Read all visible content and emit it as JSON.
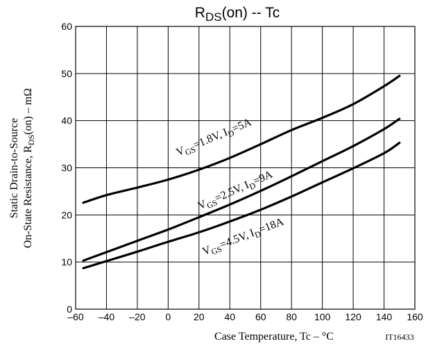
{
  "chart_data": {
    "type": "line",
    "title_main": "R",
    "title_sub": "DS",
    "title_rest": "(on)  --  Tc",
    "xlabel": "Case Temperature, Tc  –  °C",
    "ylabel_line1": "Static Drain-to-Source",
    "ylabel_line2_pre": "On-State Resistance, R",
    "ylabel_line2_sub": "DS",
    "ylabel_line2_post": "(on)  –  mΩ",
    "figure_id": "IT16433",
    "xlim": [
      -60,
      160
    ],
    "ylim": [
      0,
      60
    ],
    "x_ticks": [
      -60,
      -40,
      -20,
      0,
      20,
      40,
      60,
      80,
      100,
      120,
      140,
      160
    ],
    "x_tick_labels": [
      "–60",
      "–40",
      "–20",
      "0",
      "20",
      "40",
      "60",
      "80",
      "100",
      "120",
      "140",
      "160"
    ],
    "y_ticks": [
      0,
      10,
      20,
      30,
      40,
      50,
      60
    ],
    "y_tick_labels": [
      "0",
      "10",
      "20",
      "30",
      "40",
      "50",
      "60"
    ],
    "grid": true,
    "series": [
      {
        "label_parts": [
          "V",
          "GS",
          "=1.8V, I",
          "D",
          "=5A"
        ],
        "x": [
          -55,
          -40,
          -20,
          0,
          20,
          40,
          60,
          80,
          100,
          120,
          140,
          150
        ],
        "y": [
          22.6,
          24.2,
          25.8,
          27.5,
          29.6,
          32.1,
          35.0,
          38.0,
          40.6,
          43.5,
          47.3,
          49.5
        ]
      },
      {
        "label_parts": [
          "V",
          "GS",
          "=2.5V, I",
          "D",
          "=9A"
        ],
        "x": [
          -55,
          -40,
          -20,
          0,
          20,
          40,
          60,
          80,
          100,
          120,
          140,
          150
        ],
        "y": [
          10.3,
          12.1,
          14.5,
          16.9,
          19.5,
          22.2,
          25.1,
          28.2,
          31.4,
          34.6,
          38.2,
          40.4
        ]
      },
      {
        "label_parts": [
          "V",
          "GS",
          "=4.5V, I",
          "D",
          "=18A"
        ],
        "x": [
          -55,
          -40,
          -20,
          0,
          20,
          40,
          60,
          80,
          100,
          120,
          140,
          150
        ],
        "y": [
          8.7,
          10.2,
          12.2,
          14.3,
          16.3,
          18.6,
          21.1,
          23.9,
          26.9,
          29.9,
          33.1,
          35.3
        ]
      }
    ]
  }
}
